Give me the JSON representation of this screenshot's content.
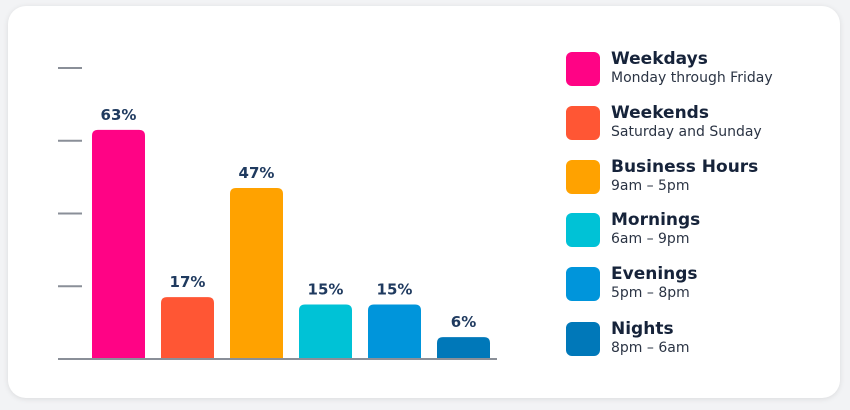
{
  "chart_data": {
    "type": "bar",
    "categories": [
      "Weekdays",
      "Weekends",
      "Business Hours",
      "Mornings",
      "Evenings",
      "Nights"
    ],
    "values": [
      63,
      17,
      47,
      15,
      15,
      6
    ],
    "value_labels": [
      "63%",
      "17%",
      "47%",
      "15%",
      "15%",
      "6%"
    ],
    "ylim": [
      0,
      80
    ],
    "grid": false,
    "legend_position": "right"
  },
  "legend": [
    {
      "name": "Weekdays",
      "desc": "Monday through Friday",
      "color": "#ff0385"
    },
    {
      "name": "Weekends",
      "desc": "Saturday and Sunday",
      "color": "#ff5634"
    },
    {
      "name": "Business Hours",
      "desc": "9am – 5pm",
      "color": "#ffa200"
    },
    {
      "name": "Mornings",
      "desc": "6am – 9pm",
      "color": "#00c2d6"
    },
    {
      "name": "Evenings",
      "desc": "5pm – 8pm",
      "color": "#0095db"
    },
    {
      "name": "Nights",
      "desc": "8pm – 6am",
      "color": "#0078b9"
    }
  ],
  "colors": {
    "axis": "#8a8f98",
    "label": "#1f3a5f"
  }
}
